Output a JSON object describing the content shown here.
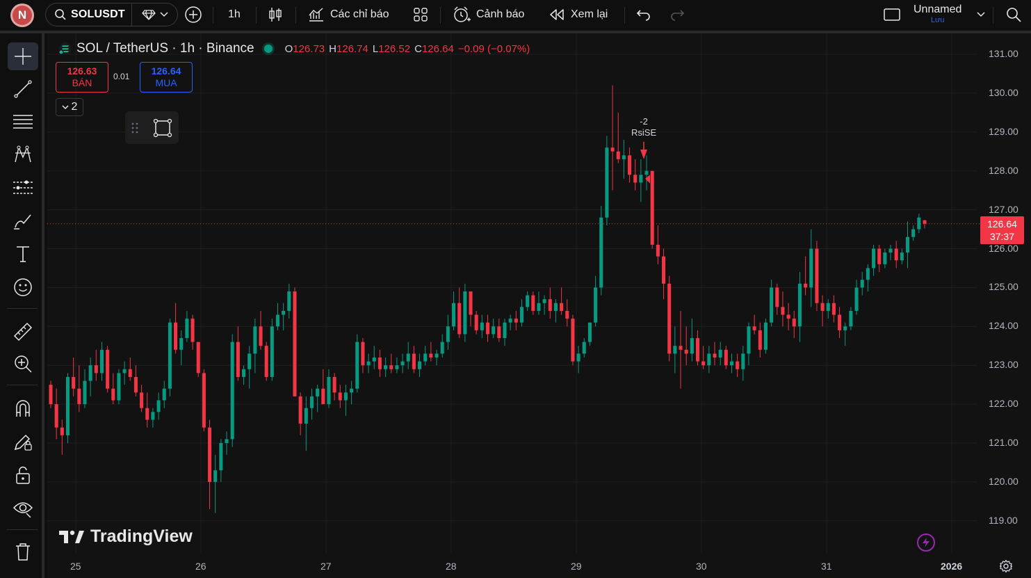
{
  "user": {
    "initial": "N"
  },
  "toolbar": {
    "symbol": "SOLUSDT",
    "interval": "1h",
    "indicators_label": "Các chỉ báo",
    "alerts_label": "Cảnh báo",
    "replay_label": "Xem lại",
    "layout_name": "Unnamed",
    "save_label": "Lưu"
  },
  "legend": {
    "title": "SOL / TetherUS · 1h · Binance",
    "open_key": "O",
    "open": "126.73",
    "high_key": "H",
    "high": "126.74",
    "low_key": "L",
    "low": "126.52",
    "close_key": "C",
    "close": "126.64",
    "change": "−0.09 (−0.07%)"
  },
  "trade": {
    "sell_price": "126.63",
    "sell_label": "BÁN",
    "spread": "0.01",
    "buy_price": "126.64",
    "buy_label": "MUA"
  },
  "collapse_count": "2",
  "price_axis": [
    "131.00",
    "130.00",
    "129.00",
    "128.00",
    "127.00",
    "126.00",
    "125.00",
    "124.00",
    "123.00",
    "122.00",
    "121.00",
    "120.00",
    "119.00"
  ],
  "time_axis": [
    "25",
    "26",
    "27",
    "28",
    "29",
    "30",
    "31",
    "2026"
  ],
  "last_price": {
    "price": "126.64",
    "countdown": "37:37"
  },
  "signal": {
    "line1": "-2",
    "line2": "RsiSE"
  },
  "watermark": "TradingView",
  "colors": {
    "up": "#089981",
    "down": "#f23645",
    "accent": "#2962ff",
    "background": "#121212"
  },
  "chart_data": {
    "type": "candlestick",
    "symbol": "SOL / TetherUS",
    "interval": "1h",
    "exchange": "Binance",
    "y_ticks": [
      119,
      120,
      121,
      122,
      123,
      124,
      125,
      126,
      127,
      128,
      129,
      130,
      131
    ],
    "x_ticks": [
      "25",
      "26",
      "27",
      "28",
      "29",
      "30",
      "31",
      "2026"
    ],
    "last_price": 126.64,
    "ohlc": [
      [
        122.5,
        122.6,
        121.9,
        122.0
      ],
      [
        122.0,
        122.4,
        121.1,
        121.4
      ],
      [
        121.4,
        121.6,
        120.7,
        121.2
      ],
      [
        121.2,
        122.8,
        121.0,
        122.7
      ],
      [
        122.7,
        123.2,
        122.2,
        122.4
      ],
      [
        122.4,
        123.0,
        121.8,
        122.0
      ],
      [
        122.0,
        122.9,
        121.9,
        122.6
      ],
      [
        122.6,
        123.2,
        122.2,
        123.0
      ],
      [
        123.0,
        123.4,
        122.6,
        122.8
      ],
      [
        122.8,
        123.6,
        122.6,
        123.4
      ],
      [
        123.4,
        123.5,
        122.3,
        122.4
      ],
      [
        122.4,
        122.8,
        122.0,
        122.1
      ],
      [
        122.1,
        122.9,
        122.0,
        122.8
      ],
      [
        122.8,
        123.1,
        122.5,
        122.9
      ],
      [
        122.9,
        123.2,
        122.6,
        122.7
      ],
      [
        122.7,
        123.0,
        122.2,
        122.3
      ],
      [
        122.3,
        122.5,
        121.8,
        121.9
      ],
      [
        121.9,
        122.3,
        121.4,
        121.6
      ],
      [
        121.6,
        121.9,
        121.4,
        121.8
      ],
      [
        121.8,
        122.3,
        121.6,
        122.1
      ],
      [
        122.1,
        122.6,
        121.9,
        122.4
      ],
      [
        122.4,
        124.2,
        122.2,
        124.1
      ],
      [
        124.1,
        124.6,
        123.3,
        123.4
      ],
      [
        123.4,
        123.9,
        123.0,
        123.7
      ],
      [
        123.7,
        124.4,
        123.6,
        124.2
      ],
      [
        124.2,
        124.3,
        123.4,
        123.6
      ],
      [
        123.6,
        123.6,
        122.7,
        122.8
      ],
      [
        122.8,
        122.9,
        121.3,
        121.4
      ],
      [
        121.4,
        121.6,
        119.3,
        120.0
      ],
      [
        120.0,
        120.7,
        119.2,
        120.3
      ],
      [
        120.3,
        121.1,
        120.0,
        121.0
      ],
      [
        121.0,
        121.3,
        120.7,
        121.1
      ],
      [
        121.1,
        123.8,
        120.9,
        123.6
      ],
      [
        123.6,
        124.0,
        122.6,
        122.7
      ],
      [
        122.7,
        123.0,
        122.5,
        122.9
      ],
      [
        122.9,
        123.5,
        122.4,
        123.3
      ],
      [
        123.3,
        124.2,
        122.8,
        124.0
      ],
      [
        124.0,
        124.4,
        123.4,
        123.5
      ],
      [
        123.5,
        123.6,
        122.6,
        122.7
      ],
      [
        122.7,
        124.2,
        122.6,
        124.0
      ],
      [
        124.0,
        124.6,
        123.9,
        124.3
      ],
      [
        124.3,
        124.6,
        123.9,
        124.4
      ],
      [
        124.4,
        125.1,
        124.2,
        124.9
      ],
      [
        124.9,
        125.0,
        122.2,
        122.2
      ],
      [
        122.2,
        122.3,
        121.2,
        121.5
      ],
      [
        121.5,
        122.2,
        120.8,
        121.9
      ],
      [
        121.9,
        122.4,
        121.6,
        122.2
      ],
      [
        122.2,
        122.5,
        121.8,
        122.4
      ],
      [
        122.4,
        122.9,
        122.0,
        122.0
      ],
      [
        122.0,
        122.9,
        121.9,
        122.7
      ],
      [
        122.7,
        122.8,
        122.1,
        122.3
      ],
      [
        122.3,
        122.5,
        121.9,
        122.1
      ],
      [
        122.1,
        122.5,
        121.7,
        122.3
      ],
      [
        122.3,
        122.6,
        122.0,
        122.4
      ],
      [
        122.4,
        123.8,
        122.3,
        123.6
      ],
      [
        123.6,
        123.7,
        122.8,
        123.0
      ],
      [
        123.0,
        123.3,
        122.8,
        123.1
      ],
      [
        123.1,
        123.5,
        122.9,
        123.2
      ],
      [
        123.2,
        123.4,
        122.7,
        122.9
      ],
      [
        122.9,
        123.2,
        122.7,
        123.0
      ],
      [
        123.0,
        123.3,
        122.8,
        122.9
      ],
      [
        122.9,
        123.2,
        122.8,
        123.0
      ],
      [
        123.0,
        123.3,
        122.8,
        123.1
      ],
      [
        123.1,
        123.6,
        122.9,
        123.3
      ],
      [
        123.3,
        123.5,
        122.8,
        122.9
      ],
      [
        122.9,
        123.3,
        122.7,
        123.1
      ],
      [
        123.1,
        123.5,
        123.0,
        123.3
      ],
      [
        123.3,
        123.6,
        123.1,
        123.2
      ],
      [
        123.2,
        123.4,
        123.0,
        123.3
      ],
      [
        123.3,
        123.8,
        123.2,
        123.6
      ],
      [
        123.6,
        124.3,
        123.4,
        124.0
      ],
      [
        124.0,
        124.9,
        123.9,
        124.6
      ],
      [
        124.6,
        125.0,
        123.7,
        123.8
      ],
      [
        123.8,
        125.1,
        123.6,
        124.9
      ],
      [
        124.9,
        124.9,
        124.0,
        124.3
      ],
      [
        124.3,
        124.4,
        123.8,
        123.9
      ],
      [
        123.9,
        124.3,
        123.7,
        124.1
      ],
      [
        124.1,
        124.3,
        123.6,
        123.8
      ],
      [
        123.8,
        124.2,
        123.7,
        124.0
      ],
      [
        124.0,
        124.2,
        123.6,
        123.7
      ],
      [
        123.7,
        124.2,
        123.5,
        124.1
      ],
      [
        124.1,
        124.3,
        123.9,
        124.2
      ],
      [
        124.2,
        124.4,
        123.9,
        124.1
      ],
      [
        124.1,
        124.7,
        124.0,
        124.5
      ],
      [
        124.5,
        124.9,
        124.4,
        124.8
      ],
      [
        124.8,
        124.9,
        124.3,
        124.4
      ],
      [
        124.4,
        124.9,
        124.3,
        124.6
      ],
      [
        124.6,
        124.8,
        124.3,
        124.7
      ],
      [
        124.7,
        125.0,
        124.2,
        124.4
      ],
      [
        124.4,
        124.7,
        124.1,
        124.6
      ],
      [
        124.6,
        125.0,
        124.3,
        124.4
      ],
      [
        124.4,
        124.7,
        124.0,
        124.2
      ],
      [
        124.2,
        124.3,
        123.0,
        123.1
      ],
      [
        123.1,
        123.5,
        122.8,
        123.3
      ],
      [
        123.3,
        123.7,
        123.2,
        123.6
      ],
      [
        123.6,
        124.1,
        123.5,
        124.1
      ],
      [
        124.1,
        125.3,
        124.0,
        125.0
      ],
      [
        125.0,
        127.1,
        124.8,
        126.8
      ],
      [
        126.8,
        128.9,
        126.6,
        128.6
      ],
      [
        128.6,
        130.2,
        127.5,
        128.5
      ],
      [
        128.5,
        129.5,
        128.2,
        128.3
      ],
      [
        128.3,
        128.8,
        127.8,
        128.4
      ],
      [
        128.4,
        128.6,
        127.7,
        127.9
      ],
      [
        127.9,
        128.3,
        127.5,
        127.7
      ],
      [
        127.7,
        128.3,
        127.2,
        127.9
      ],
      [
        127.9,
        128.4,
        127.5,
        128.0
      ],
      [
        128.0,
        128.0,
        126.0,
        126.1
      ],
      [
        126.1,
        126.6,
        125.6,
        125.8
      ],
      [
        125.8,
        126.0,
        124.7,
        125.1
      ],
      [
        125.1,
        125.3,
        123.1,
        123.3
      ],
      [
        123.3,
        124.0,
        122.8,
        123.5
      ],
      [
        123.5,
        124.4,
        122.4,
        123.4
      ],
      [
        123.4,
        124.0,
        123.0,
        123.3
      ],
      [
        123.3,
        124.2,
        123.1,
        123.7
      ],
      [
        123.7,
        123.9,
        123.0,
        123.1
      ],
      [
        123.1,
        123.5,
        122.9,
        123.0
      ],
      [
        123.0,
        123.5,
        122.8,
        123.3
      ],
      [
        123.3,
        123.6,
        123.0,
        123.2
      ],
      [
        123.2,
        123.6,
        123.0,
        123.4
      ],
      [
        123.4,
        123.5,
        122.9,
        123.0
      ],
      [
        123.0,
        123.3,
        122.8,
        123.1
      ],
      [
        123.1,
        123.3,
        122.7,
        122.9
      ],
      [
        122.9,
        123.5,
        122.6,
        123.3
      ],
      [
        123.3,
        124.1,
        123.0,
        124.0
      ],
      [
        124.0,
        124.3,
        123.8,
        123.9
      ],
      [
        123.9,
        124.1,
        123.2,
        123.4
      ],
      [
        123.4,
        124.2,
        123.3,
        124.1
      ],
      [
        124.1,
        125.2,
        124.0,
        125.0
      ],
      [
        125.0,
        125.1,
        124.3,
        124.5
      ],
      [
        124.5,
        124.9,
        124.0,
        124.3
      ],
      [
        124.3,
        124.6,
        123.9,
        124.2
      ],
      [
        124.2,
        124.4,
        123.7,
        124.0
      ],
      [
        124.0,
        125.4,
        123.6,
        125.1
      ],
      [
        125.1,
        125.8,
        124.8,
        125.0
      ],
      [
        125.0,
        126.5,
        124.5,
        126.0
      ],
      [
        126.0,
        126.2,
        124.4,
        124.6
      ],
      [
        124.6,
        124.8,
        124.0,
        124.4
      ],
      [
        124.4,
        124.7,
        124.2,
        124.6
      ],
      [
        124.6,
        124.8,
        124.1,
        124.3
      ],
      [
        124.3,
        124.5,
        123.7,
        123.9
      ],
      [
        123.9,
        124.1,
        123.5,
        124.0
      ],
      [
        124.0,
        124.5,
        123.9,
        124.4
      ],
      [
        124.4,
        125.2,
        124.3,
        125.0
      ],
      [
        125.0,
        125.4,
        124.8,
        125.2
      ],
      [
        125.2,
        125.6,
        124.9,
        125.5
      ],
      [
        125.5,
        126.1,
        125.3,
        126.0
      ],
      [
        126.0,
        126.1,
        125.4,
        125.6
      ],
      [
        125.6,
        126.0,
        125.5,
        125.9
      ],
      [
        125.9,
        126.1,
        125.7,
        126.0
      ],
      [
        126.0,
        126.2,
        125.5,
        125.7
      ],
      [
        125.7,
        126.0,
        125.6,
        125.9
      ],
      [
        125.9,
        126.7,
        125.5,
        126.3
      ],
      [
        126.3,
        126.6,
        126.2,
        126.5
      ],
      [
        126.5,
        126.9,
        126.4,
        126.8
      ],
      [
        126.73,
        126.74,
        126.52,
        126.64
      ]
    ]
  }
}
